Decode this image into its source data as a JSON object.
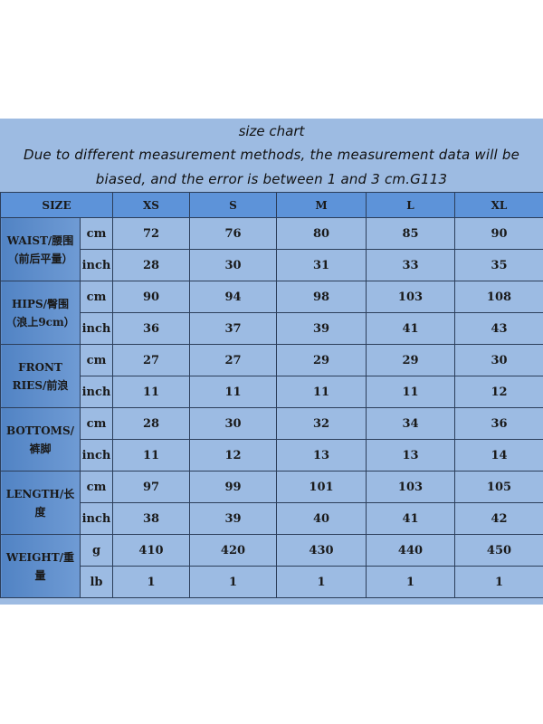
{
  "title": "size chart",
  "note_line1": "Due to different measurement methods, the measurement data will be",
  "note_line2": "biased, and the error is between 1 and 3 cm.G113",
  "colors": {
    "header": "#5d93d9",
    "cell": "#9cbbe3",
    "label": "#5183c4"
  },
  "header": {
    "size_label": "SIZE",
    "sizes": [
      "XS",
      "S",
      "M",
      "L",
      "XL"
    ]
  },
  "groups": [
    {
      "label": "WAIST/腰围（前后平量）",
      "rows": [
        {
          "unit": "cm",
          "values": [
            "72",
            "76",
            "80",
            "85",
            "90"
          ]
        },
        {
          "unit": "inch",
          "values": [
            "28",
            "30",
            "31",
            "33",
            "35"
          ]
        }
      ]
    },
    {
      "label": "HIPS/臀围（浪上9cm）",
      "rows": [
        {
          "unit": "cm",
          "values": [
            "90",
            "94",
            "98",
            "103",
            "108"
          ]
        },
        {
          "unit": "inch",
          "values": [
            "36",
            "37",
            "39",
            "41",
            "43"
          ]
        }
      ]
    },
    {
      "label": "FRONT RIES/前浪",
      "rows": [
        {
          "unit": "cm",
          "values": [
            "27",
            "27",
            "29",
            "29",
            "30"
          ]
        },
        {
          "unit": "inch",
          "values": [
            "11",
            "11",
            "11",
            "11",
            "12"
          ]
        }
      ]
    },
    {
      "label": "BOTTOMS/裤脚",
      "rows": [
        {
          "unit": "cm",
          "values": [
            "28",
            "30",
            "32",
            "34",
            "36"
          ]
        },
        {
          "unit": "inch",
          "values": [
            "11",
            "12",
            "13",
            "13",
            "14"
          ]
        }
      ]
    },
    {
      "label": "LENGTH/长度",
      "rows": [
        {
          "unit": "cm",
          "values": [
            "97",
            "99",
            "101",
            "103",
            "105"
          ]
        },
        {
          "unit": "inch",
          "values": [
            "38",
            "39",
            "40",
            "41",
            "42"
          ]
        }
      ]
    },
    {
      "label": "WEIGHT/重量",
      "rows": [
        {
          "unit": "g",
          "values": [
            "410",
            "420",
            "430",
            "440",
            "450"
          ]
        },
        {
          "unit": "lb",
          "values": [
            "1",
            "1",
            "1",
            "1",
            "1"
          ]
        }
      ]
    }
  ]
}
